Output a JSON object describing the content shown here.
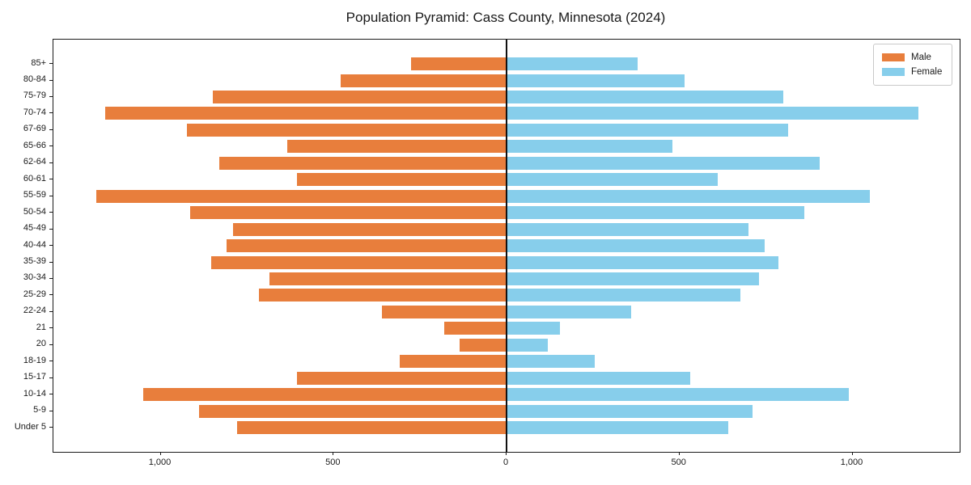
{
  "title": "Population Pyramid: Cass County, Minnesota (2024)",
  "colors": {
    "male": "#e87e3c",
    "female": "#87ceeb",
    "axis": "#1a1a1a"
  },
  "legend": {
    "position": "upper right"
  },
  "x_axis": {
    "tick_labels": [
      "1,000",
      "500",
      "0",
      "500",
      "1,000"
    ],
    "tick_values": [
      -1000,
      -500,
      0,
      500,
      1000
    ]
  },
  "chart_data": {
    "type": "bar",
    "orientation": "horizontal_pyramid",
    "title": "Population Pyramid: Cass County, Minnesota (2024)",
    "categories": [
      "85+",
      "80-84",
      "75-79",
      "70-74",
      "67-69",
      "65-66",
      "62-64",
      "60-61",
      "55-59",
      "50-54",
      "45-49",
      "40-44",
      "35-39",
      "30-34",
      "25-29",
      "22-24",
      "21",
      "20",
      "18-19",
      "15-17",
      "10-14",
      "5-9",
      "Under 5"
    ],
    "series": [
      {
        "name": "Male",
        "side": "left",
        "color": "#e87e3c",
        "values": [
          275,
          480,
          850,
          1160,
          925,
          635,
          830,
          605,
          1185,
          915,
          790,
          810,
          855,
          685,
          715,
          360,
          180,
          135,
          310,
          605,
          1050,
          890,
          780
        ]
      },
      {
        "name": "Female",
        "side": "right",
        "color": "#87ceeb",
        "values": [
          380,
          515,
          800,
          1190,
          815,
          480,
          905,
          610,
          1050,
          860,
          700,
          745,
          785,
          730,
          675,
          360,
          155,
          120,
          255,
          530,
          990,
          710,
          640
        ]
      }
    ],
    "x_tick_labels": [
      "1,000",
      "500",
      "0",
      "500",
      "1,000"
    ],
    "x_tick_values": [
      -1000,
      -500,
      0,
      500,
      1000
    ],
    "xlim": [
      -1310,
      1310
    ],
    "ylim_note": "categories listed top to bottom",
    "grid": false,
    "legend_position": "upper right"
  }
}
